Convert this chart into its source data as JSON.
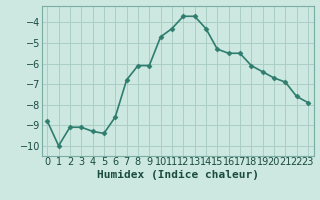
{
  "x": [
    0,
    1,
    2,
    3,
    4,
    5,
    6,
    7,
    8,
    9,
    10,
    11,
    12,
    13,
    14,
    15,
    16,
    17,
    18,
    19,
    20,
    21,
    22,
    23
  ],
  "y": [
    -8.8,
    -10.0,
    -9.1,
    -9.1,
    -9.3,
    -9.4,
    -8.6,
    -6.8,
    -6.1,
    -6.1,
    -4.7,
    -4.3,
    -3.7,
    -3.7,
    -4.3,
    -5.3,
    -5.5,
    -5.5,
    -6.1,
    -6.4,
    -6.7,
    -6.9,
    -7.6,
    -7.9
  ],
  "line_color": "#2e7d6e",
  "marker": "D",
  "marker_size": 2.5,
  "bg_color": "#cce8e0",
  "grid_color": "#aacec6",
  "xlabel": "Humidex (Indice chaleur)",
  "ylim": [
    -10.5,
    -3.2
  ],
  "xlim": [
    -0.5,
    23.5
  ],
  "yticks": [
    -10,
    -9,
    -8,
    -7,
    -6,
    -5,
    -4
  ],
  "tick_fontsize": 7,
  "xlabel_fontsize": 8,
  "line_width": 1.2
}
